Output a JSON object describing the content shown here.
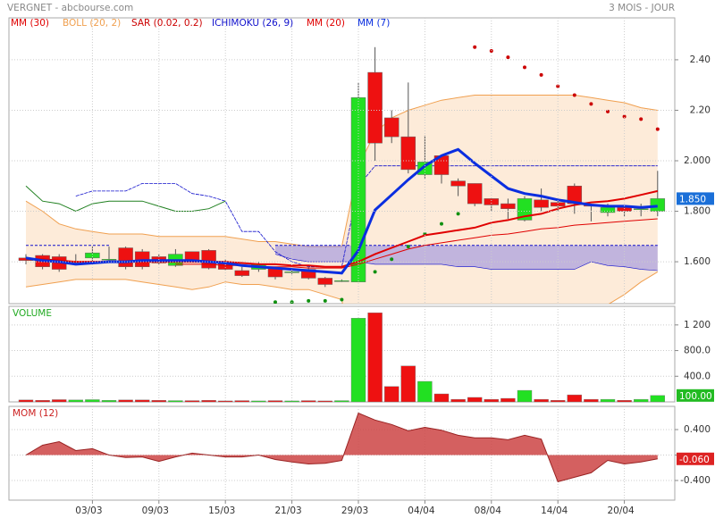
{
  "chart_data": [
    {
      "type": "candlestick",
      "title": "VERGNET - abcbourse.com",
      "subtitle": "3 MOIS - JOUR",
      "categories": [
        null,
        null,
        null,
        null,
        "03/03",
        null,
        null,
        null,
        "09/03",
        null,
        null,
        null,
        "15/03",
        null,
        null,
        null,
        "21/03",
        null,
        null,
        null,
        "29/03",
        null,
        null,
        null,
        "04/04",
        null,
        null,
        null,
        "08/04",
        null,
        null,
        null,
        "14/04",
        null,
        null,
        null,
        "20/04",
        null,
        null
      ],
      "open": [
        1.615,
        1.625,
        1.62,
        1.6,
        1.615,
        1.61,
        1.655,
        1.64,
        1.62,
        1.585,
        1.64,
        1.645,
        1.595,
        1.565,
        1.57,
        1.575,
        1.56,
        1.57,
        1.535,
        1.525,
        1.52,
        2.35,
        2.17,
        2.095,
        1.945,
        2.02,
        1.92,
        1.91,
        1.85,
        1.83,
        1.765,
        1.845,
        1.835,
        1.9,
        1.825,
        1.795,
        1.815,
        1.81,
        1.8
      ],
      "high": [
        1.63,
        1.63,
        1.63,
        1.63,
        1.66,
        1.66,
        1.66,
        1.65,
        1.63,
        1.65,
        1.64,
        1.65,
        1.61,
        1.58,
        1.6,
        1.58,
        1.57,
        1.58,
        1.54,
        1.53,
        2.31,
        2.45,
        2.2,
        2.31,
        2.1,
        2.02,
        1.93,
        1.91,
        1.85,
        1.85,
        1.86,
        1.89,
        1.85,
        1.91,
        1.83,
        1.83,
        1.82,
        1.83,
        1.96
      ],
      "low": [
        1.59,
        1.57,
        1.56,
        1.59,
        1.6,
        1.6,
        1.57,
        1.57,
        1.59,
        1.58,
        1.6,
        1.57,
        1.565,
        1.54,
        1.56,
        1.53,
        1.55,
        1.53,
        1.5,
        1.52,
        1.52,
        2.0,
        2.07,
        1.95,
        1.93,
        1.91,
        1.86,
        1.82,
        1.8,
        1.77,
        1.76,
        1.8,
        1.8,
        1.79,
        1.76,
        1.78,
        1.78,
        1.78,
        1.78
      ],
      "close": [
        1.605,
        1.58,
        1.57,
        1.6,
        1.635,
        1.61,
        1.58,
        1.58,
        1.595,
        1.63,
        1.605,
        1.575,
        1.57,
        1.545,
        1.59,
        1.54,
        1.56,
        1.535,
        1.51,
        1.525,
        2.25,
        2.07,
        2.095,
        1.965,
        1.995,
        1.945,
        1.9,
        1.83,
        1.825,
        1.81,
        1.85,
        1.815,
        1.82,
        1.83,
        1.82,
        1.815,
        1.8,
        1.81,
        1.85
      ],
      "up_color": "#22e022",
      "down_color": "#ee1111",
      "ylim": [
        1.434,
        2.566
      ],
      "yticks": [
        {
          "value": 1.6,
          "label": "1.600"
        },
        {
          "value": 1.8,
          "label": "1.800"
        },
        {
          "value": 2.0,
          "label": "2.000"
        },
        {
          "value": 2.2,
          "label": "2.20"
        },
        {
          "value": 2.4,
          "label": "2.40"
        }
      ],
      "last_value": {
        "value": 1.85,
        "label": "1.850"
      },
      "last_color": "#1a6fd8",
      "grid": true,
      "overlays": [
        {
          "name": "MM (30)",
          "kind": "line",
          "color": "#e00000",
          "line_width": 1,
          "values": [
            null,
            null,
            null,
            null,
            null,
            null,
            null,
            null,
            null,
            1.59,
            1.59,
            1.59,
            1.585,
            1.585,
            1.58,
            1.58,
            1.58,
            1.575,
            1.575,
            1.575,
            1.59,
            1.61,
            1.63,
            1.65,
            1.665,
            1.675,
            1.685,
            1.695,
            1.705,
            1.71,
            1.72,
            1.73,
            1.735,
            1.745,
            1.75,
            1.755,
            1.76,
            1.765,
            1.77
          ]
        },
        {
          "name": "BOLL (20, 2)",
          "kind": "band",
          "color": "#f0a050",
          "upper": [
            1.84,
            1.8,
            1.75,
            1.73,
            1.72,
            1.71,
            1.71,
            1.71,
            1.7,
            1.7,
            1.7,
            1.7,
            1.7,
            1.69,
            1.68,
            1.68,
            1.67,
            1.66,
            1.66,
            1.66,
            1.98,
            2.11,
            2.17,
            2.2,
            2.22,
            2.24,
            2.25,
            2.26,
            2.26,
            2.26,
            2.26,
            2.26,
            2.26,
            2.26,
            2.25,
            2.24,
            2.23,
            2.21,
            2.2
          ],
          "lower": [
            1.5,
            1.51,
            1.52,
            1.53,
            1.53,
            1.53,
            1.53,
            1.52,
            1.51,
            1.5,
            1.49,
            1.5,
            1.52,
            1.51,
            1.51,
            1.5,
            1.49,
            1.49,
            1.47,
            1.45,
            1.1,
            1.0,
            1.05,
            1.12,
            1.2,
            1.25,
            1.3,
            1.34,
            1.36,
            1.38,
            1.4,
            1.4,
            1.4,
            1.4,
            1.41,
            1.43,
            1.47,
            1.52,
            1.56
          ]
        },
        {
          "name": "SAR (0.02, 0.2)",
          "kind": "dots",
          "color": "#cc0000",
          "below_color": "#109010",
          "values": [
            null,
            null,
            null,
            null,
            null,
            null,
            null,
            null,
            null,
            null,
            null,
            null,
            null,
            null,
            null,
            1.44,
            1.44,
            1.445,
            1.445,
            1.45,
            null,
            1.56,
            1.61,
            1.66,
            1.71,
            1.75,
            1.79,
            2.45,
            2.435,
            2.41,
            2.37,
            2.34,
            2.295,
            2.26,
            2.225,
            2.195,
            2.175,
            2.165,
            2.125
          ]
        },
        {
          "name": "ICHIMOKU (26, 9)",
          "kind": "ichimoku",
          "color": "#1010cc",
          "cloud_color": "#9a8fe0",
          "chikou_color": "#208020",
          "tenkan": [
            null,
            null,
            null,
            1.86,
            1.88,
            1.88,
            1.88,
            1.91,
            1.91,
            1.91,
            1.87,
            1.86,
            1.84,
            1.72,
            1.72,
            1.64,
            1.6,
            1.58,
            1.58,
            1.58,
            1.9,
            1.98,
            1.98,
            1.98,
            1.98,
            1.98,
            1.98,
            1.98,
            1.98,
            1.98,
            1.98,
            1.98,
            1.98,
            1.98,
            1.98,
            1.98,
            1.98,
            1.98,
            1.98
          ],
          "chikou": [
            1.9,
            1.84,
            1.83,
            1.8,
            1.83,
            1.84,
            1.84,
            1.84,
            1.82,
            1.8,
            1.8,
            1.81,
            1.84,
            null,
            null,
            null,
            null,
            null,
            null,
            null,
            null,
            null,
            null,
            null,
            null,
            null,
            null,
            null,
            null,
            null,
            null,
            null,
            null,
            null,
            null,
            null,
            null,
            null,
            null
          ],
          "span_a": [
            1.665,
            1.665,
            1.665,
            1.665,
            1.665,
            1.665,
            null,
            null,
            null,
            null,
            null,
            null,
            null,
            null,
            null,
            1.665,
            1.665,
            1.665,
            1.665,
            1.665,
            1.665,
            1.665,
            1.665,
            1.665,
            1.665,
            1.665,
            1.665,
            1.665,
            1.665,
            1.665,
            1.665,
            1.665,
            1.665,
            1.665,
            1.665,
            1.665,
            1.665,
            1.665,
            1.665
          ],
          "span_b": [
            null,
            null,
            null,
            null,
            null,
            null,
            null,
            null,
            null,
            null,
            null,
            null,
            null,
            null,
            null,
            1.63,
            1.61,
            1.6,
            1.6,
            1.6,
            1.6,
            1.59,
            1.59,
            1.59,
            1.59,
            1.59,
            1.58,
            1.58,
            1.57,
            1.57,
            1.57,
            1.57,
            1.57,
            1.57,
            1.6,
            1.585,
            1.58,
            1.57,
            1.565
          ]
        },
        {
          "name": "MM (20)",
          "kind": "line",
          "color": "#e00000",
          "line_width": 2,
          "values": [
            1.61,
            1.61,
            1.605,
            1.6,
            1.6,
            1.6,
            1.6,
            1.6,
            1.6,
            1.6,
            1.6,
            1.6,
            1.6,
            1.595,
            1.59,
            1.59,
            1.585,
            1.585,
            1.58,
            1.58,
            1.6,
            1.63,
            1.655,
            1.68,
            1.705,
            1.715,
            1.725,
            1.735,
            1.755,
            1.765,
            1.78,
            1.79,
            1.81,
            1.825,
            1.835,
            1.84,
            1.85,
            1.865,
            1.88
          ]
        },
        {
          "name": "MM (7)",
          "kind": "line",
          "color": "#0a2ee0",
          "line_width": 3,
          "values": [
            1.615,
            1.605,
            1.6,
            1.59,
            1.595,
            1.6,
            1.6,
            1.605,
            1.605,
            1.605,
            1.605,
            1.6,
            1.595,
            1.585,
            1.58,
            1.575,
            1.57,
            1.565,
            1.56,
            1.555,
            1.645,
            1.805,
            1.865,
            1.925,
            1.98,
            2.02,
            2.045,
            1.99,
            1.94,
            1.89,
            1.87,
            1.86,
            1.845,
            1.835,
            1.825,
            1.82,
            1.82,
            1.815,
            1.82
          ]
        }
      ]
    },
    {
      "type": "bar",
      "title": "VOLUME",
      "title_color": "#22aa22",
      "values": [
        30,
        25,
        35,
        30,
        35,
        25,
        30,
        30,
        25,
        20,
        20,
        25,
        15,
        20,
        15,
        20,
        15,
        20,
        15,
        20,
        1305,
        1390,
        240,
        560,
        320,
        125,
        40,
        70,
        40,
        55,
        180,
        40,
        25,
        110,
        40,
        40,
        25,
        40,
        100
      ],
      "ylim": [
        0,
        1490
      ],
      "yticks": [
        {
          "value": 400,
          "label": "400.0"
        },
        {
          "value": 800,
          "label": "800.0"
        },
        {
          "value": 1200,
          "label": "1 200"
        }
      ],
      "last_value": {
        "value": 100,
        "label": "100.00"
      },
      "last_color": "#22bb22",
      "grid": true
    },
    {
      "type": "area",
      "title": "MOM (12)",
      "title_color": "#cc2222",
      "color": "#cc4444",
      "values": [
        0,
        0.155,
        0.21,
        0.07,
        0.1,
        0,
        -0.04,
        -0.03,
        -0.1,
        -0.03,
        0.03,
        0,
        -0.03,
        -0.03,
        0,
        -0.07,
        -0.11,
        -0.14,
        -0.13,
        -0.085,
        0.66,
        0.55,
        0.48,
        0.38,
        0.435,
        0.39,
        0.31,
        0.27,
        0.27,
        0.24,
        0.31,
        0.25,
        -0.42,
        -0.35,
        -0.28,
        -0.085,
        -0.14,
        -0.11,
        -0.06
      ],
      "ylim": [
        -0.709,
        0.765
      ],
      "yticks": [
        {
          "value": -0.4,
          "label": "-0.400"
        },
        0,
        {
          "value": 0.4,
          "label": "0.400"
        }
      ],
      "last_value": {
        "value": -0.06,
        "label": "-0.060"
      },
      "last_color": "#dd2222",
      "grid": true
    }
  ]
}
